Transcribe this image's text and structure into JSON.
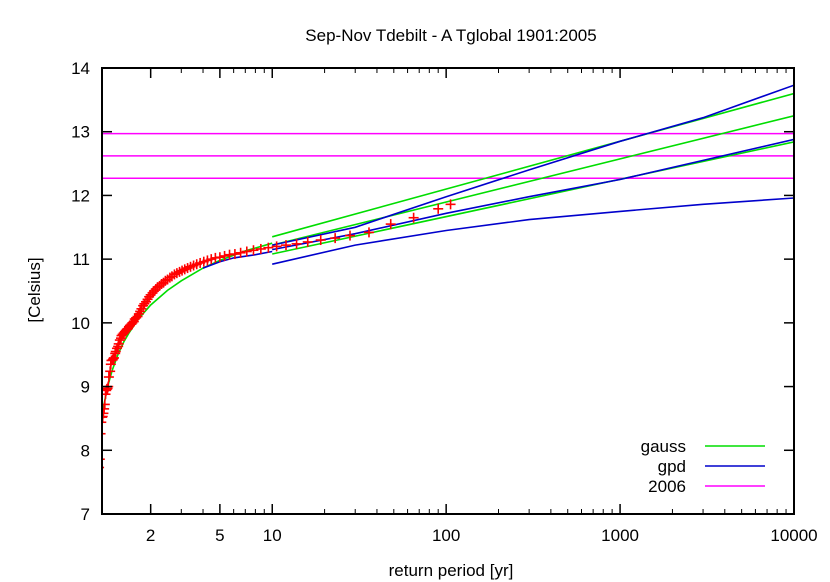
{
  "chart_data": {
    "type": "scatter",
    "title": "Sep-Nov Tdebilt - A Tglobal 1901:2005",
    "xlabel": "return period [yr]",
    "ylabel": "[Celsius]",
    "xscale": "log",
    "xlim": [
      1.05,
      10000
    ],
    "ylim": [
      7,
      14
    ],
    "xticks": [
      {
        "value": 2,
        "label": "2"
      },
      {
        "value": 5,
        "label": "5"
      },
      {
        "value": 10,
        "label": "10"
      },
      {
        "value": 100,
        "label": "100"
      },
      {
        "value": 1000,
        "label": "1000"
      },
      {
        "value": 10000,
        "label": "10000"
      }
    ],
    "yticks": [
      7,
      8,
      9,
      10,
      11,
      12,
      13,
      14
    ],
    "legend_position": "bottom-right",
    "legend": [
      {
        "label": "gauss",
        "color": "#00dd00"
      },
      {
        "label": "gpd",
        "color": "#0000cc"
      },
      {
        "label": "2006",
        "color": "#ff00ff"
      }
    ],
    "points_color": "#ff0000",
    "points": [
      [
        1.01,
        7.73
      ],
      [
        1.02,
        7.86
      ],
      [
        1.03,
        8.26
      ],
      [
        1.04,
        8.44
      ],
      [
        1.05,
        8.52
      ],
      [
        1.06,
        8.53
      ],
      [
        1.07,
        8.58
      ],
      [
        1.08,
        8.65
      ],
      [
        1.09,
        8.72
      ],
      [
        1.1,
        8.88
      ],
      [
        1.11,
        8.94
      ],
      [
        1.12,
        8.96
      ],
      [
        1.13,
        8.97
      ],
      [
        1.14,
        9.0
      ],
      [
        1.15,
        9.15
      ],
      [
        1.17,
        9.24
      ],
      [
        1.18,
        9.35
      ],
      [
        1.19,
        9.41
      ],
      [
        1.21,
        9.42
      ],
      [
        1.22,
        9.44
      ],
      [
        1.23,
        9.45
      ],
      [
        1.25,
        9.52
      ],
      [
        1.26,
        9.55
      ],
      [
        1.28,
        9.6
      ],
      [
        1.3,
        9.63
      ],
      [
        1.31,
        9.67
      ],
      [
        1.33,
        9.73
      ],
      [
        1.35,
        9.76
      ],
      [
        1.36,
        9.8
      ],
      [
        1.38,
        9.82
      ],
      [
        1.4,
        9.84
      ],
      [
        1.42,
        9.86
      ],
      [
        1.44,
        9.88
      ],
      [
        1.46,
        9.9
      ],
      [
        1.48,
        9.91
      ],
      [
        1.5,
        9.94
      ],
      [
        1.52,
        9.96
      ],
      [
        1.55,
        9.98
      ],
      [
        1.57,
        10.0
      ],
      [
        1.6,
        10.02
      ],
      [
        1.62,
        10.06
      ],
      [
        1.65,
        10.08
      ],
      [
        1.68,
        10.1
      ],
      [
        1.71,
        10.14
      ],
      [
        1.74,
        10.18
      ],
      [
        1.77,
        10.22
      ],
      [
        1.81,
        10.27
      ],
      [
        1.84,
        10.3
      ],
      [
        1.88,
        10.33
      ],
      [
        1.92,
        10.37
      ],
      [
        1.96,
        10.41
      ],
      [
        2.0,
        10.44
      ],
      [
        2.05,
        10.47
      ],
      [
        2.09,
        10.5
      ],
      [
        2.14,
        10.53
      ],
      [
        2.19,
        10.56
      ],
      [
        2.25,
        10.58
      ],
      [
        2.31,
        10.61
      ],
      [
        2.37,
        10.63
      ],
      [
        2.43,
        10.66
      ],
      [
        2.5,
        10.68
      ],
      [
        2.58,
        10.71
      ],
      [
        2.65,
        10.73
      ],
      [
        2.74,
        10.76
      ],
      [
        2.83,
        10.78
      ],
      [
        2.93,
        10.8
      ],
      [
        3.03,
        10.82
      ],
      [
        3.14,
        10.84
      ],
      [
        3.26,
        10.86
      ],
      [
        3.39,
        10.88
      ],
      [
        3.53,
        10.9
      ],
      [
        3.68,
        10.92
      ],
      [
        3.85,
        10.94
      ],
      [
        4.04,
        10.96
      ],
      [
        4.24,
        10.98
      ],
      [
        4.46,
        11.0
      ],
      [
        4.71,
        11.02
      ],
      [
        5.0,
        11.03
      ],
      [
        5.32,
        11.05
      ],
      [
        5.68,
        11.07
      ],
      [
        6.1,
        11.08
      ],
      [
        6.58,
        11.1
      ],
      [
        7.14,
        11.12
      ],
      [
        7.8,
        11.14
      ],
      [
        8.6,
        11.16
      ],
      [
        9.5,
        11.18
      ],
      [
        10.6,
        11.2
      ],
      [
        12.0,
        11.22
      ],
      [
        13.8,
        11.24
      ],
      [
        16.0,
        11.27
      ],
      [
        19.0,
        11.3
      ],
      [
        23.0,
        11.33
      ],
      [
        28.0,
        11.37
      ],
      [
        36.0,
        11.42
      ],
      [
        48.0,
        11.55
      ],
      [
        65.0,
        11.65
      ],
      [
        90.0,
        11.79
      ],
      [
        106.0,
        11.86
      ]
    ],
    "series": [
      {
        "name": "gauss",
        "color": "#00dd00",
        "x": [
          1.0,
          1.03,
          1.06,
          1.1,
          1.15,
          1.2,
          1.3,
          1.4,
          1.5,
          1.7,
          2.0,
          2.5,
          3.0,
          4.0,
          5.0,
          7.0,
          10.0
        ],
        "y": [
          8.05,
          8.38,
          8.6,
          8.84,
          9.07,
          9.25,
          9.51,
          9.7,
          9.84,
          10.06,
          10.28,
          10.51,
          10.66,
          10.86,
          10.98,
          11.13,
          11.25
        ]
      },
      {
        "name": "gauss upper bound",
        "color": "#00dd00",
        "x": [
          10,
          10000
        ],
        "y": [
          11.35,
          13.6
        ]
      },
      {
        "name": "gauss lower bound",
        "color": "#00dd00",
        "x": [
          10,
          10000
        ],
        "y": [
          11.08,
          12.84
        ]
      },
      {
        "name": "gauss central",
        "color": "#00dd00",
        "x": [
          10,
          10000
        ],
        "y": [
          11.22,
          13.25
        ]
      },
      {
        "name": "gpd",
        "color": "#0000cc",
        "x": [
          4.0,
          5.0,
          6.0,
          8.0,
          10.0
        ],
        "y": [
          10.86,
          10.96,
          11.02,
          11.07,
          11.12
        ]
      },
      {
        "name": "gpd upper bound",
        "color": "#0000cc",
        "x": [
          10,
          30,
          100,
          300,
          1000,
          3000,
          10000
        ],
        "y": [
          11.22,
          11.5,
          11.98,
          12.4,
          12.85,
          13.22,
          13.73
        ]
      },
      {
        "name": "gpd central",
        "color": "#0000cc",
        "x": [
          10,
          30,
          100,
          300,
          1000,
          3000,
          10000
        ],
        "y": [
          11.15,
          11.4,
          11.72,
          11.98,
          12.25,
          12.55,
          12.88
        ]
      },
      {
        "name": "gpd lower bound",
        "color": "#0000cc",
        "x": [
          10,
          30,
          100,
          300,
          1000,
          3000,
          10000
        ],
        "y": [
          10.92,
          11.22,
          11.45,
          11.62,
          11.75,
          11.86,
          11.96
        ]
      }
    ],
    "hlines": [
      {
        "name": "2006",
        "y": 12.97,
        "color": "#ff00ff"
      },
      {
        "name": "2006",
        "y": 12.62,
        "color": "#ff00ff"
      },
      {
        "name": "2006",
        "y": 12.27,
        "color": "#ff00ff"
      }
    ]
  }
}
